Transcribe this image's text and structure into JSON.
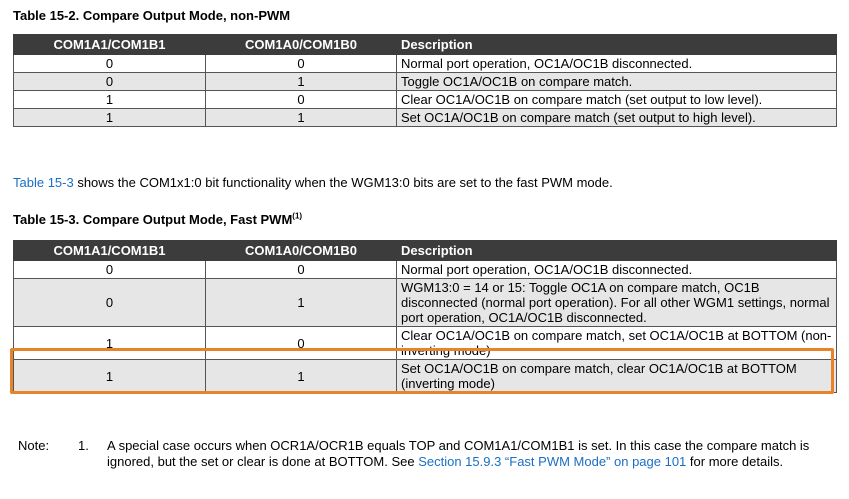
{
  "table1": {
    "caption": "Table 15-2.  Compare Output Mode, non-PWM",
    "headers": [
      "COM1A1/COM1B1",
      "COM1A0/COM1B0",
      "Description"
    ],
    "rows": [
      [
        "0",
        "0",
        "Normal port operation, OC1A/OC1B disconnected."
      ],
      [
        "0",
        "1",
        "Toggle OC1A/OC1B on compare match."
      ],
      [
        "1",
        "0",
        "Clear OC1A/OC1B on compare match (set output to low level)."
      ],
      [
        "1",
        "1",
        "Set OC1A/OC1B on compare match (set output to high level)."
      ]
    ]
  },
  "paragraph": {
    "link": "Table 15-3",
    "text": " shows the COM1x1:0 bit functionality when the WGM13:0 bits are set to the fast PWM mode."
  },
  "table2": {
    "caption": "Table 15-3.  Compare Output Mode, Fast PWM",
    "caption_sup": "(1)",
    "headers": [
      "COM1A1/COM1B1",
      "COM1A0/COM1B0",
      "Description"
    ],
    "rows": [
      [
        "0",
        "0",
        "Normal port operation, OC1A/OC1B disconnected."
      ],
      [
        "0",
        "1",
        "WGM13:0 = 14 or 15: Toggle OC1A on compare match, OC1B disconnected (normal port operation). For all other WGM1 settings, normal port operation, OC1A/OC1B disconnected."
      ],
      [
        "1",
        "0",
        "Clear OC1A/OC1B on compare match, set OC1A/OC1B at BOTTOM (non-inverting mode)"
      ],
      [
        "1",
        "1",
        "Set OC1A/OC1B on compare match, clear OC1A/OC1B at BOTTOM (inverting mode)"
      ]
    ]
  },
  "note": {
    "label": "Note:",
    "index": "1.",
    "text_before": "A special case occurs when OCR1A/OCR1B equals TOP and COM1A1/COM1B1 is set. In this case the compare match is ignored, but the set or clear is done at BOTTOM. See ",
    "link": "Section 15.9.3 “Fast PWM Mode” on page 101",
    "text_after": " for more details."
  },
  "highlight_color": "#e8832a"
}
